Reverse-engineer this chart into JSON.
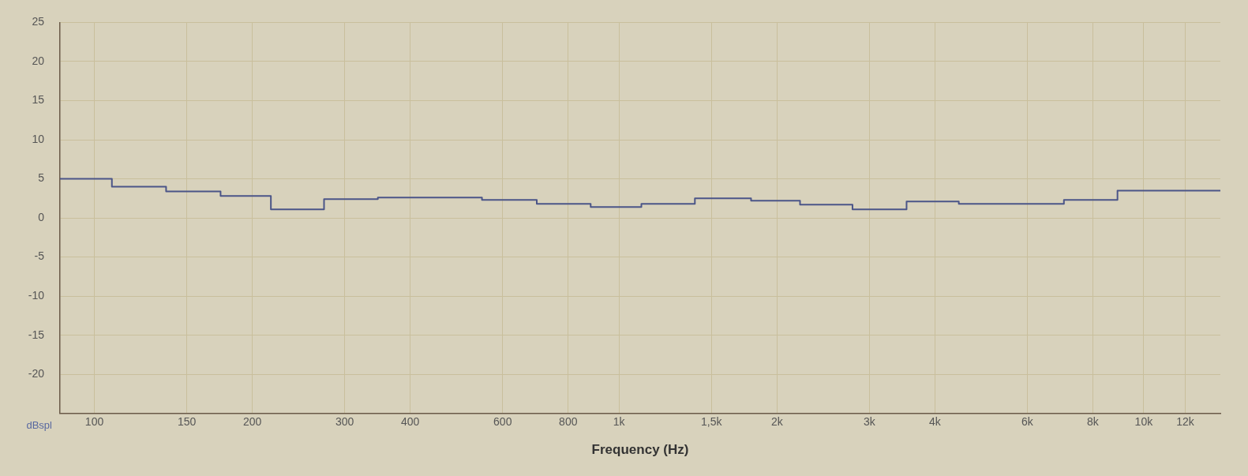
{
  "chart_data": {
    "type": "step",
    "xlabel": "Frequency (Hz)",
    "ylabel": "dBspl",
    "x": [
      86,
      108,
      137,
      174,
      217,
      274,
      347,
      548,
      697,
      883,
      1103,
      1395,
      1785,
      2213,
      2786,
      3532,
      4442,
      7046,
      8913,
      14000
    ],
    "series": [
      {
        "color": "#4b5588",
        "values": [
          5.0,
          4.0,
          3.4,
          2.8,
          1.1,
          2.4,
          2.6,
          2.3,
          1.8,
          1.4,
          1.8,
          2.5,
          2.2,
          1.7,
          1.1,
          2.1,
          1.8,
          2.3,
          3.5,
          3.5
        ]
      }
    ],
    "log": "x",
    "xlim": [
      86,
      14000
    ],
    "xticks": [
      100,
      150,
      200,
      300,
      400,
      600,
      800,
      {
        "value": 1000,
        "label": "1k"
      },
      {
        "value": 1500,
        "label": "1,5k"
      },
      {
        "value": 2000,
        "label": "2k"
      },
      {
        "value": 3000,
        "label": "3k"
      },
      {
        "value": 4000,
        "label": "4k"
      },
      {
        "value": 6000,
        "label": "6k"
      },
      {
        "value": 8000,
        "label": "8k"
      },
      {
        "value": 10000,
        "label": "10k"
      },
      {
        "value": 12000,
        "label": "12k"
      }
    ],
    "ylim": [
      -25,
      25
    ],
    "yticks": [
      -20,
      -15,
      -10,
      -5,
      0,
      5,
      10,
      15,
      20,
      25
    ],
    "grid": true,
    "legend": false
  }
}
